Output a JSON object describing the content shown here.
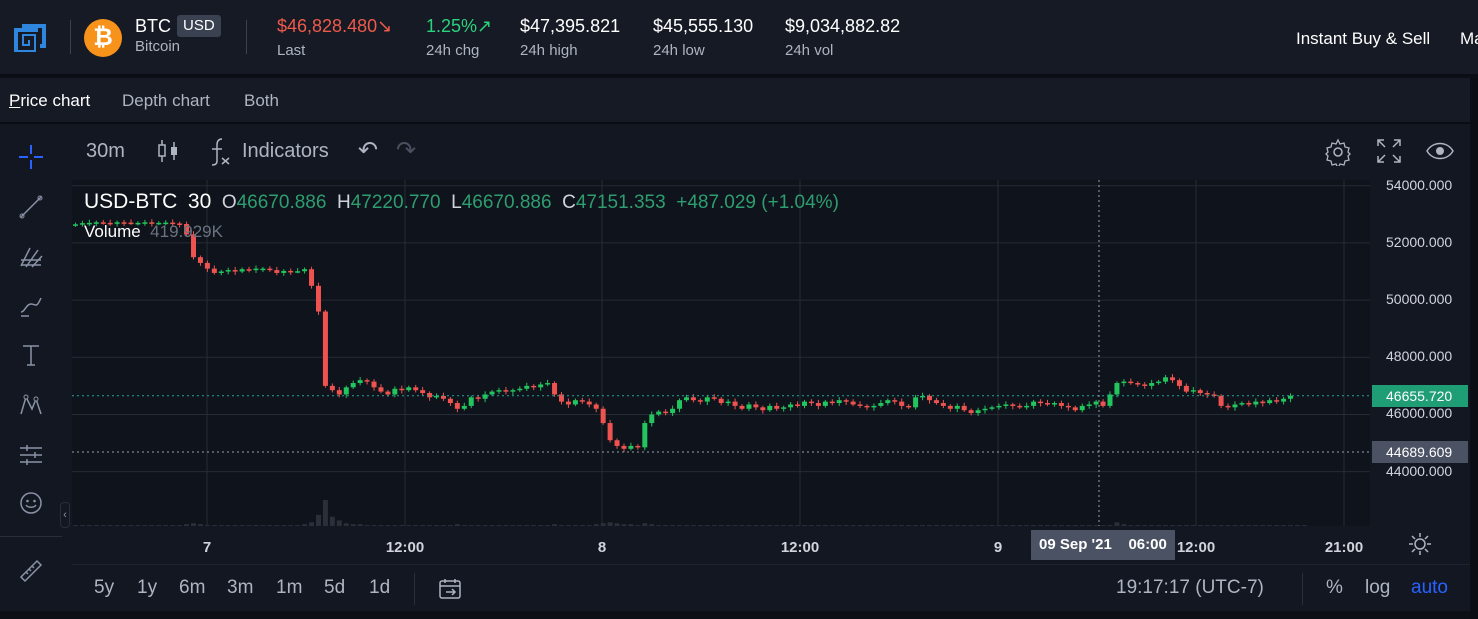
{
  "ticker": {
    "symbol": "BTC",
    "quote": "USD",
    "name": "Bitcoin",
    "coin_glyph": "₿",
    "last": {
      "value": "$46,828.480",
      "arrow": "↘",
      "label": "Last"
    },
    "chg": {
      "value": "1.25%",
      "arrow": "↗",
      "label": "24h chg"
    },
    "high": {
      "value": "$47,395.821",
      "label": "24h high"
    },
    "low": {
      "value": "$45,555.130",
      "label": "24h low"
    },
    "vol": {
      "value": "$9,034,882.82",
      "label": "24h vol"
    },
    "links": [
      "Instant Buy & Sell",
      "Ma"
    ]
  },
  "tabs": [
    "Price chart",
    "Depth chart",
    "Both"
  ],
  "toolbar": {
    "interval": "30m",
    "indicators": "Indicators",
    "undo": "↶",
    "redo": "↷"
  },
  "legend": {
    "pair": "USD-BTC",
    "interval": "30",
    "o_label": "O",
    "o": "46670.886",
    "h_label": "H",
    "h": "47220.770",
    "l_label": "L",
    "l": "46670.886",
    "c_label": "C",
    "c": "47151.353",
    "change": "+487.029 (+1.04%)",
    "volume_label": "Volume",
    "volume": "419.929K"
  },
  "colors": {
    "up": "#26a69a",
    "up_bright": "#22c55e",
    "down": "#ef5350",
    "accent": "#2962ff"
  },
  "chart_data": {
    "type": "candlestick",
    "y_ticks": [
      "54000.000",
      "52000.000",
      "50000.000",
      "48000.000",
      "46000.000",
      "44000.000"
    ],
    "y_tick_values": [
      54000,
      52000,
      50000,
      48000,
      46000,
      44000
    ],
    "ylim": [
      42100,
      54200
    ],
    "x_ticks": [
      "7",
      "12:00",
      "8",
      "12:00",
      "9",
      "12:00",
      "21:00"
    ],
    "last_price": {
      "label": "46655.720",
      "value": 46655.72
    },
    "crosshair_price": {
      "label": "44689.609",
      "value": 44689.609
    },
    "crosshair_time": {
      "date": "09 Sep '21",
      "time": "06:00"
    },
    "close_series": [
      52650,
      52690,
      52700,
      52720,
      52700,
      52680,
      52720,
      52710,
      52690,
      52700,
      52720,
      52690,
      52700,
      52710,
      52680,
      52660,
      52300,
      51500,
      51300,
      51100,
      50950,
      51000,
      51050,
      51000,
      51080,
      51050,
      51100,
      51100,
      51050,
      50950,
      51020,
      51000,
      51010,
      51080,
      50500,
      49600,
      47000,
      46850,
      46700,
      46950,
      47100,
      47200,
      47150,
      46950,
      46800,
      46700,
      46900,
      46850,
      46950,
      46850,
      46750,
      46600,
      46650,
      46550,
      46400,
      46200,
      46300,
      46600,
      46550,
      46700,
      46800,
      46850,
      46800,
      46850,
      46900,
      47000,
      46950,
      47050,
      47100,
      46700,
      46450,
      46350,
      46500,
      46450,
      46350,
      46200,
      45700,
      45100,
      44900,
      44800,
      44900,
      44850,
      45700,
      46000,
      46100,
      46050,
      46200,
      46500,
      46600,
      46500,
      46450,
      46600,
      46550,
      46400,
      46450,
      46300,
      46200,
      46350,
      46250,
      46150,
      46300,
      46200,
      46250,
      46350,
      46300,
      46450,
      46400,
      46300,
      46450,
      46400,
      46500,
      46450,
      46350,
      46300,
      46250,
      46300,
      46400,
      46500,
      46450,
      46300,
      46250,
      46600,
      46650,
      46500,
      46400,
      46300,
      46200,
      46300,
      46150,
      46050,
      46150,
      46200,
      46250,
      46300,
      46350,
      46300,
      46250,
      46300,
      46450,
      46400,
      46350,
      46400,
      46300,
      46250,
      46150,
      46300,
      46350,
      46450,
      46300,
      46700,
      47100,
      47150,
      47100,
      47050,
      47000,
      47100,
      47150,
      47300,
      47200,
      47000,
      46800,
      46850,
      46750,
      46700,
      46650,
      46300,
      46250,
      46350,
      46400,
      46350,
      46450,
      46400,
      46500,
      46450,
      46550,
      46655.72
    ],
    "volume_series": [
      1,
      1,
      1,
      1,
      1,
      1,
      1,
      1,
      1,
      1,
      1,
      1,
      1,
      1,
      1,
      1,
      2,
      3,
      2,
      1,
      1,
      1,
      1,
      1,
      1,
      1,
      1,
      1,
      1,
      1,
      1,
      1,
      1,
      2,
      4,
      12,
      28,
      10,
      6,
      3,
      2,
      2,
      1,
      1,
      1,
      1,
      1,
      1,
      1,
      1,
      1,
      1,
      1,
      1,
      1,
      2,
      1,
      1,
      1,
      1,
      1,
      1,
      1,
      1,
      1,
      1,
      1,
      1,
      1,
      2,
      1,
      1,
      1,
      1,
      1,
      2,
      3,
      4,
      3,
      2,
      2,
      1,
      3,
      2,
      1,
      1,
      1,
      1,
      1,
      1,
      1,
      1,
      1,
      1,
      1,
      1,
      1,
      1,
      1,
      1,
      1,
      1,
      1,
      1,
      1,
      1,
      1,
      1,
      1,
      1,
      1,
      1,
      1,
      1,
      1,
      1,
      1,
      1,
      1,
      1,
      1,
      1,
      1,
      1,
      1,
      1,
      1,
      1,
      1,
      1,
      1,
      1,
      1,
      1,
      1,
      1,
      1,
      1,
      1,
      1,
      1,
      1,
      1,
      1,
      1,
      1,
      1,
      1,
      1,
      1,
      4,
      2,
      1,
      1,
      1,
      1,
      1,
      1,
      1,
      1,
      1,
      1,
      1,
      1,
      1,
      1,
      1,
      1,
      1,
      1,
      1,
      1,
      1,
      1,
      1,
      1,
      1,
      1
    ]
  },
  "ranges": [
    "5y",
    "1y",
    "6m",
    "3m",
    "1m",
    "5d",
    "1d"
  ],
  "clock": "19:17:17 (UTC-7)",
  "scale_opts": {
    "pct": "%",
    "log": "log",
    "auto": "auto"
  }
}
